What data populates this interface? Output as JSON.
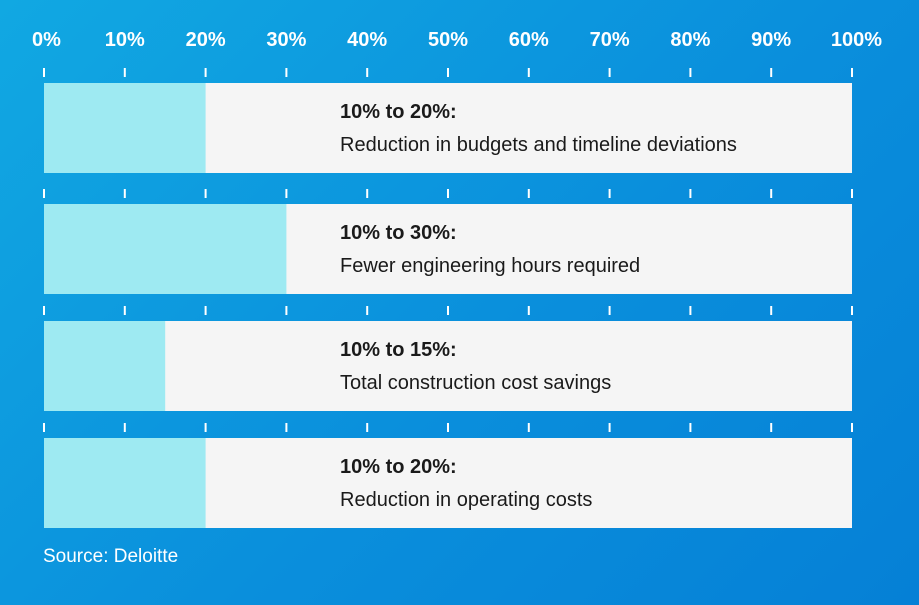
{
  "chart_data": {
    "type": "bar",
    "orientation": "horizontal",
    "x_ticks": [
      "0%",
      "10%",
      "20%",
      "30%",
      "40%",
      "50%",
      "60%",
      "70%",
      "80%",
      "90%",
      "100%"
    ],
    "xlim": [
      0,
      100
    ],
    "bars": [
      {
        "range_label": "10% to 20%:",
        "description": "Reduction in budgets and timeline deviations",
        "value": 20
      },
      {
        "range_label": "10% to 30%:",
        "description": "Fewer engineering hours required",
        "value": 30
      },
      {
        "range_label": "10% to 15%:",
        "description": "Total construction cost savings",
        "value": 15
      },
      {
        "range_label": "10% to 20%:",
        "description": "Reduction in operating costs",
        "value": 20
      }
    ],
    "colors": {
      "fill": "#9eeaf2",
      "track": "#f5f5f5",
      "tick": "#ffffff",
      "text": "#1a1a1a"
    },
    "grid": false,
    "legend": "none"
  },
  "source": "Source: Deloitte"
}
